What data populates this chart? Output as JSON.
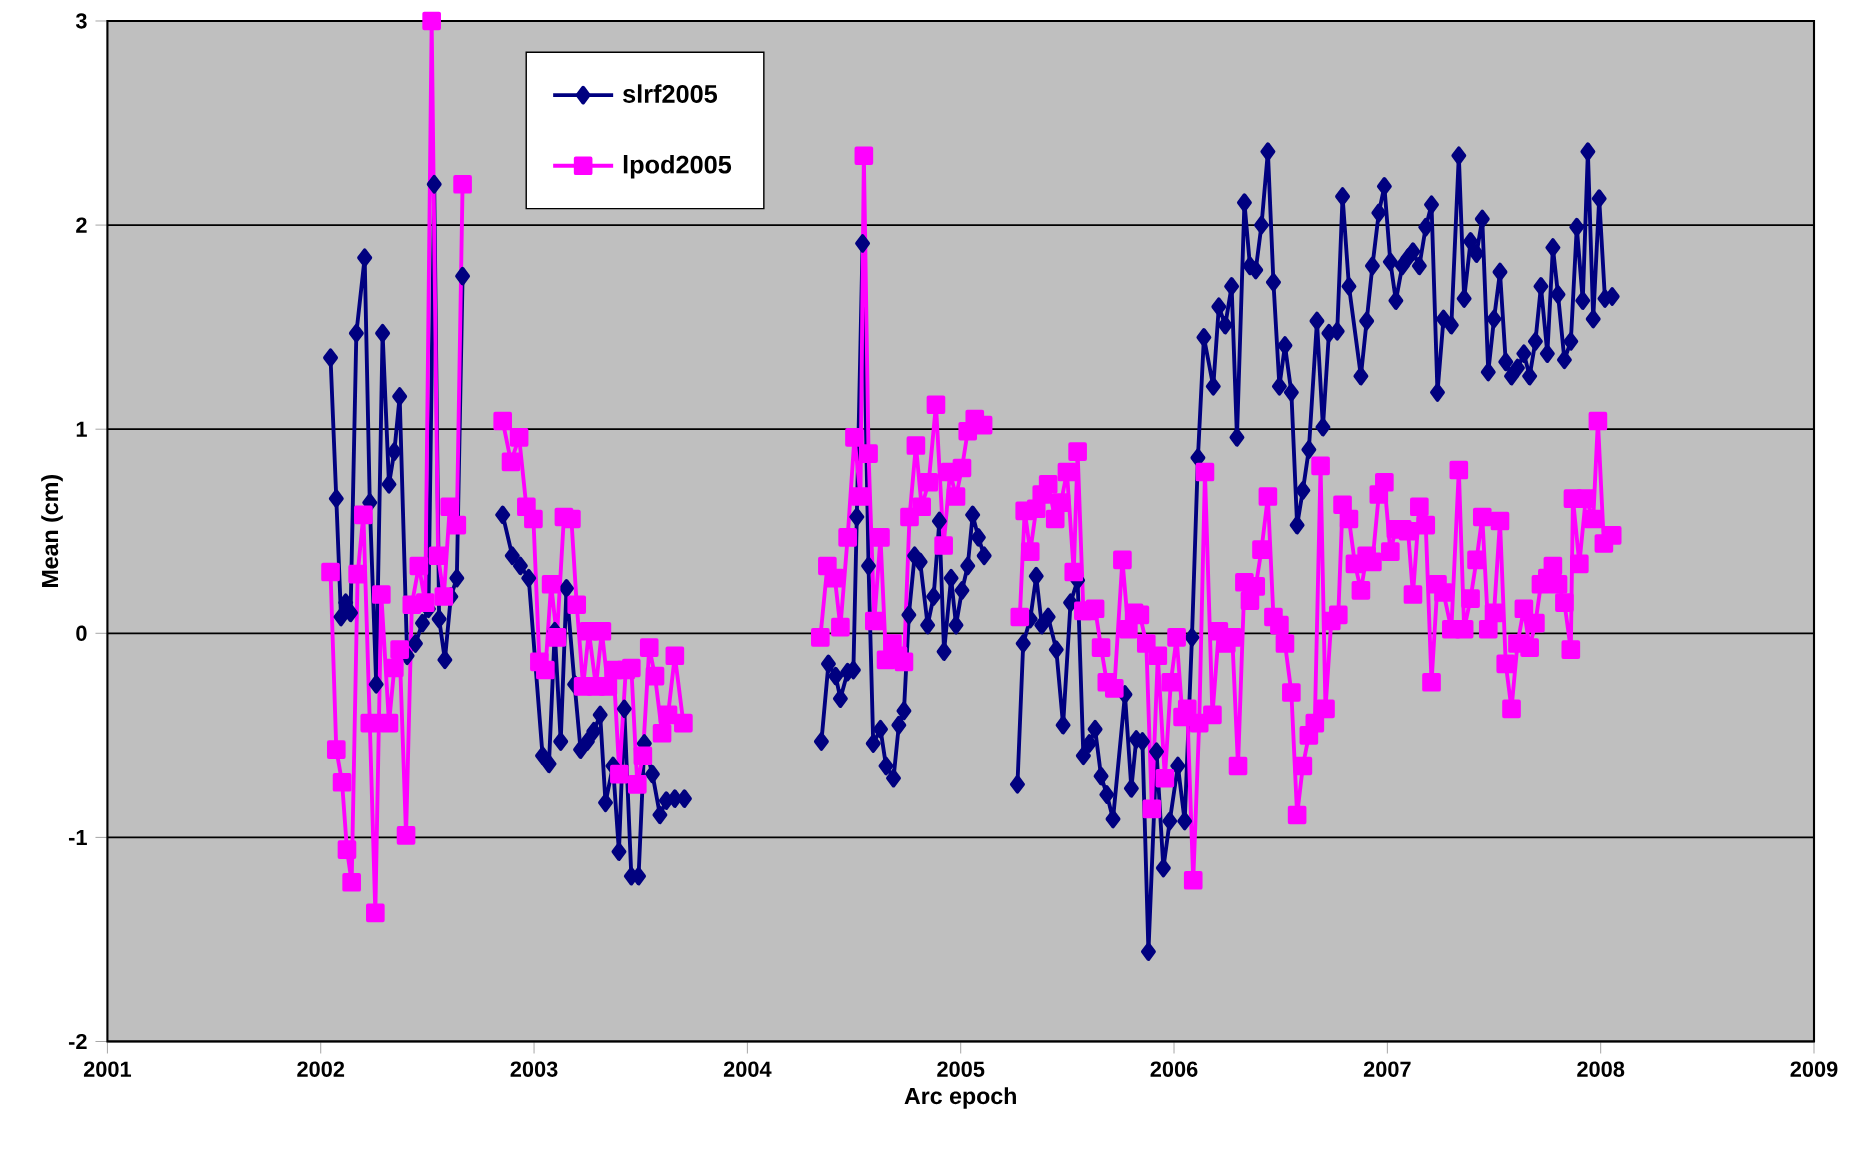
{
  "chart_data": {
    "type": "line",
    "xlabel": "Arc epoch",
    "ylabel": "Mean (cm)",
    "xlim": [
      2001,
      2009
    ],
    "xticks": [
      2001,
      2002,
      2003,
      2004,
      2005,
      2006,
      2007,
      2008,
      2009
    ],
    "ylim": [
      -2,
      3
    ],
    "yticks": [
      -2,
      -1,
      0,
      1,
      2,
      3
    ],
    "grid": "y",
    "legend": "top left",
    "line_style": "solid",
    "series": [
      {
        "name": "slrf2005",
        "color": "#000080",
        "marker": "diamond",
        "x": [
          2002.046,
          2002.073,
          2002.095,
          2002.117,
          2002.14,
          2002.167,
          2002.206,
          2002.23,
          2002.26,
          2002.29,
          2002.32,
          2002.345,
          2002.37,
          2002.405,
          2002.444,
          2002.477,
          2002.505,
          2002.532,
          2002.555,
          2002.582,
          2002.61,
          2002.638,
          2002.665,
          2002.76,
          2002.853,
          2002.898,
          2002.936,
          2002.975,
          2003.04,
          2003.07,
          2003.097,
          2003.125,
          2003.152,
          2003.19,
          2003.218,
          2003.25,
          2003.28,
          2003.31,
          2003.335,
          2003.37,
          2003.398,
          2003.423,
          2003.456,
          2003.49,
          2003.517,
          2003.555,
          2003.59,
          2003.62,
          2003.66,
          2003.705,
          2004.0,
          2004.347,
          2004.38,
          2004.414,
          2004.436,
          2004.47,
          2004.497,
          2004.513,
          2004.54,
          2004.568,
          2004.59,
          2004.624,
          2004.65,
          2004.685,
          2004.71,
          2004.734,
          2004.757,
          2004.784,
          2004.81,
          2004.845,
          2004.873,
          2004.9,
          2004.922,
          2004.955,
          2004.978,
          2005.006,
          2005.033,
          2005.056,
          2005.083,
          2005.11,
          2005.19,
          2005.266,
          2005.293,
          2005.326,
          2005.354,
          2005.38,
          2005.41,
          2005.448,
          2005.48,
          2005.515,
          2005.548,
          2005.575,
          2005.603,
          2005.63,
          2005.658,
          2005.685,
          2005.714,
          2005.77,
          2005.8,
          2005.823,
          2005.852,
          2005.88,
          2005.918,
          2005.95,
          2005.98,
          2006.018,
          2006.05,
          2006.084,
          2006.112,
          2006.14,
          2006.184,
          2006.21,
          2006.24,
          2006.27,
          2006.295,
          2006.33,
          2006.356,
          2006.383,
          2006.41,
          2006.44,
          2006.466,
          2006.494,
          2006.52,
          2006.55,
          2006.577,
          2006.604,
          2006.632,
          2006.67,
          2006.698,
          2006.726,
          2006.765,
          2006.79,
          2006.82,
          2006.876,
          2006.903,
          2006.93,
          2006.96,
          2006.986,
          2007.014,
          2007.04,
          2007.07,
          2007.097,
          2007.12,
          2007.15,
          2007.18,
          2007.207,
          2007.235,
          2007.263,
          2007.3,
          2007.335,
          2007.36,
          2007.39,
          2007.418,
          2007.445,
          2007.473,
          2007.5,
          2007.528,
          2007.555,
          2007.582,
          2007.61,
          2007.64,
          2007.667,
          2007.694,
          2007.72,
          2007.75,
          2007.776,
          2007.8,
          2007.83,
          2007.86,
          2007.888,
          2007.916,
          2007.94,
          2007.965,
          2007.993,
          2008.02,
          2008.054
        ],
        "values": [
          1.35,
          0.66,
          0.08,
          0.15,
          0.1,
          1.47,
          1.84,
          0.64,
          -0.25,
          1.47,
          0.73,
          0.89,
          1.16,
          -0.11,
          -0.05,
          0.05,
          0.12,
          2.2,
          0.07,
          -0.13,
          0.18,
          0.27,
          1.75,
          null,
          0.58,
          0.38,
          0.33,
          0.27,
          -0.6,
          -0.64,
          0.01,
          -0.53,
          0.22,
          -0.25,
          -0.57,
          -0.53,
          -0.48,
          -0.4,
          -0.83,
          -0.65,
          -1.07,
          -0.37,
          -1.19,
          -1.19,
          -0.54,
          -0.69,
          -0.89,
          -0.82,
          -0.81,
          -0.81,
          null,
          -0.53,
          -0.15,
          -0.21,
          -0.32,
          -0.19,
          -0.18,
          0.57,
          1.91,
          0.33,
          -0.54,
          -0.47,
          -0.65,
          -0.71,
          -0.45,
          -0.38,
          0.09,
          0.38,
          0.35,
          0.04,
          0.18,
          0.55,
          -0.09,
          0.27,
          0.04,
          0.21,
          0.33,
          0.58,
          0.47,
          0.38,
          null,
          -0.74,
          -0.05,
          0.07,
          0.28,
          0.04,
          0.08,
          -0.08,
          -0.45,
          0.15,
          0.26,
          -0.6,
          -0.54,
          -0.47,
          -0.7,
          -0.79,
          -0.91,
          -0.3,
          -0.76,
          -0.52,
          -0.53,
          -1.56,
          -0.58,
          -1.15,
          -0.92,
          -0.65,
          -0.92,
          -0.02,
          0.86,
          1.45,
          1.21,
          1.6,
          1.51,
          1.7,
          0.96,
          2.11,
          1.8,
          1.78,
          2.0,
          2.36,
          1.72,
          1.21,
          1.41,
          1.18,
          0.53,
          0.7,
          0.9,
          1.53,
          1.01,
          1.47,
          1.48,
          2.14,
          1.7,
          1.26,
          1.53,
          1.8,
          2.06,
          2.19,
          1.82,
          1.63,
          1.8,
          1.84,
          1.87,
          1.8,
          1.99,
          2.1,
          1.18,
          1.54,
          1.51,
          2.34,
          1.64,
          1.92,
          1.86,
          2.03,
          1.28,
          1.54,
          1.77,
          1.33,
          1.26,
          1.3,
          1.37,
          1.26,
          1.43,
          1.7,
          1.37,
          1.89,
          1.66,
          1.34,
          1.43,
          1.99,
          1.63,
          2.36,
          1.54,
          2.13,
          1.64,
          1.65
        ]
      },
      {
        "name": "lpod2005",
        "color": "#ff00ff",
        "marker": "square",
        "x": [
          2002.046,
          2002.073,
          2002.1,
          2002.123,
          2002.145,
          2002.173,
          2002.2,
          2002.23,
          2002.256,
          2002.284,
          2002.32,
          2002.345,
          2002.37,
          2002.4,
          2002.427,
          2002.46,
          2002.49,
          2002.52,
          2002.55,
          2002.577,
          2002.605,
          2002.638,
          2002.665,
          2002.76,
          2002.853,
          2002.892,
          2002.93,
          2002.964,
          2002.997,
          2003.025,
          2003.053,
          2003.08,
          2003.107,
          2003.14,
          2003.175,
          2003.2,
          2003.23,
          2003.257,
          2003.29,
          2003.318,
          2003.346,
          2003.373,
          2003.4,
          2003.43,
          2003.456,
          2003.484,
          2003.51,
          2003.54,
          2003.567,
          2003.6,
          2003.628,
          2003.66,
          2003.7,
          2004.0,
          2004.342,
          2004.375,
          2004.41,
          2004.436,
          2004.47,
          2004.502,
          2004.53,
          2004.546,
          2004.568,
          2004.595,
          2004.624,
          2004.65,
          2004.68,
          2004.706,
          2004.734,
          2004.76,
          2004.79,
          2004.817,
          2004.85,
          2004.884,
          2004.92,
          2004.95,
          2004.978,
          2005.006,
          2005.033,
          2005.066,
          2005.105,
          2005.19,
          2005.277,
          2005.3,
          2005.326,
          2005.354,
          2005.38,
          2005.41,
          2005.443,
          2005.47,
          2005.498,
          2005.53,
          2005.548,
          2005.575,
          2005.603,
          2005.63,
          2005.658,
          2005.685,
          2005.72,
          2005.758,
          2005.786,
          2005.813,
          2005.84,
          2005.87,
          2005.896,
          2005.924,
          2005.957,
          2005.985,
          2006.012,
          2006.04,
          2006.062,
          2006.09,
          2006.118,
          2006.145,
          2006.18,
          2006.21,
          2006.245,
          2006.273,
          2006.3,
          2006.33,
          2006.356,
          2006.383,
          2006.41,
          2006.44,
          2006.466,
          2006.494,
          2006.52,
          2006.55,
          2006.577,
          2006.604,
          2006.632,
          2006.66,
          2006.687,
          2006.71,
          2006.737,
          2006.77,
          2006.79,
          2006.82,
          2006.848,
          2006.876,
          2006.903,
          2006.93,
          2006.96,
          2006.986,
          2007.014,
          2007.04,
          2007.07,
          2007.097,
          2007.12,
          2007.15,
          2007.18,
          2007.207,
          2007.235,
          2007.263,
          2007.3,
          2007.335,
          2007.36,
          2007.39,
          2007.418,
          2007.445,
          2007.473,
          2007.5,
          2007.528,
          2007.555,
          2007.582,
          2007.61,
          2007.64,
          2007.667,
          2007.694,
          2007.72,
          2007.75,
          2007.776,
          2007.8,
          2007.83,
          2007.86,
          2007.87,
          2007.9,
          2007.93,
          2007.965,
          2007.987,
          2008.015,
          2008.054
        ],
        "values": [
          0.3,
          -0.57,
          -0.73,
          -1.06,
          -1.22,
          0.29,
          0.58,
          -0.44,
          -1.37,
          0.19,
          -0.44,
          -0.17,
          -0.08,
          -0.99,
          0.14,
          0.33,
          0.15,
          3.0,
          0.38,
          0.18,
          0.62,
          0.53,
          2.2,
          null,
          1.04,
          0.84,
          0.96,
          0.62,
          0.56,
          -0.14,
          -0.18,
          0.24,
          -0.02,
          0.57,
          0.56,
          0.14,
          -0.26,
          0.01,
          -0.26,
          0.01,
          -0.26,
          -0.18,
          -0.69,
          -0.18,
          -0.17,
          -0.74,
          -0.6,
          -0.07,
          -0.21,
          -0.49,
          -0.4,
          -0.11,
          -0.44,
          null,
          -0.02,
          0.33,
          0.27,
          0.03,
          0.47,
          0.96,
          0.67,
          2.34,
          0.88,
          0.06,
          0.47,
          -0.13,
          -0.05,
          -0.11,
          -0.14,
          0.57,
          0.92,
          0.62,
          0.74,
          1.12,
          0.43,
          0.79,
          0.67,
          0.81,
          0.99,
          1.05,
          1.02,
          null,
          0.08,
          0.6,
          0.4,
          0.61,
          0.68,
          0.73,
          0.56,
          0.64,
          0.79,
          0.3,
          0.89,
          0.11,
          0.11,
          0.12,
          -0.07,
          -0.24,
          -0.27,
          0.36,
          0.02,
          0.1,
          0.09,
          -0.05,
          -0.86,
          -0.11,
          -0.71,
          -0.24,
          -0.02,
          -0.41,
          -0.37,
          -1.21,
          -0.44,
          0.79,
          -0.4,
          0.01,
          -0.05,
          -0.02,
          -0.65,
          0.25,
          0.16,
          0.23,
          0.41,
          0.67,
          0.08,
          0.04,
          -0.05,
          -0.29,
          -0.89,
          -0.65,
          -0.5,
          -0.44,
          0.82,
          -0.37,
          0.06,
          0.09,
          0.63,
          0.56,
          0.34,
          0.21,
          0.38,
          0.35,
          0.68,
          0.74,
          0.4,
          0.51,
          0.51,
          0.5,
          0.19,
          0.62,
          0.53,
          -0.24,
          0.24,
          0.2,
          0.02,
          0.8,
          0.02,
          0.17,
          0.36,
          0.57,
          0.02,
          0.1,
          0.55,
          -0.15,
          -0.37,
          -0.05,
          0.12,
          -0.07,
          0.05,
          0.24,
          0.27,
          0.33,
          0.24,
          0.15,
          -0.08,
          0.66,
          0.34,
          0.66,
          0.56,
          1.04,
          0.44,
          0.48
        ]
      }
    ]
  }
}
